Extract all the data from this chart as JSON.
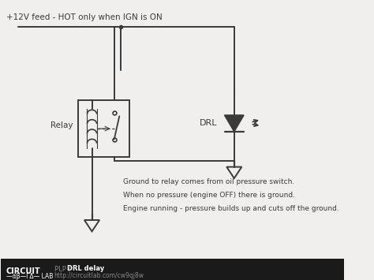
{
  "bg_color": "#f0efed",
  "line_color": "#3a3a3a",
  "footer_bg": "#1a1a1a",
  "footer_text_color": "#cccccc",
  "title_text": "+12V feed - HOT only when IGN is ON",
  "relay_label": "Relay",
  "drl_label": "DRL",
  "note_line1": "Ground to relay comes from oil pressure switch.",
  "note_line2": "When no pressure (engine OFF) there is ground.",
  "note_line3": "Engine running - pressure builds up and cuts off the ground.",
  "footer_bold": "PLP / ",
  "footer_title": "DRL delay",
  "footer_url": "http://circuitlab.com/cw9qj8w",
  "circuit_lab_text": "CIRCUIT\n-αβ-ΓΔ- LAB"
}
